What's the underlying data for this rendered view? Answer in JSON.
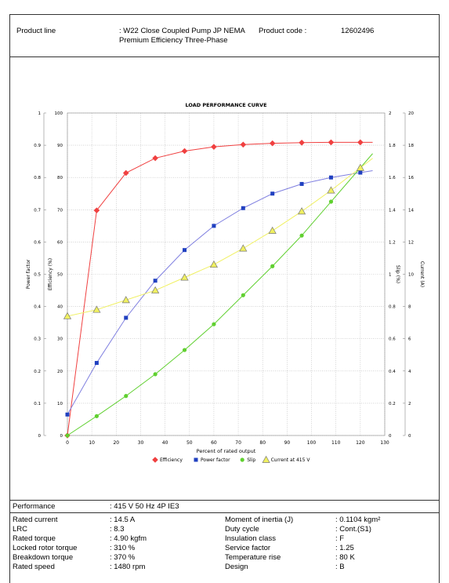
{
  "header": {
    "product_line_label": "Product line",
    "product_line_value": ": W22 Close Coupled Pump JP NEMA Premium Efficiency Three-Phase",
    "product_code_label": "Product code :",
    "product_code_value": "12602496"
  },
  "chart_data": {
    "type": "line",
    "title": "LOAD PERFORMANCE CURVE",
    "xlabel": "Percent of rated output",
    "xlim": [
      0,
      130
    ],
    "x_ticks": [
      0,
      10,
      20,
      30,
      40,
      50,
      60,
      70,
      80,
      90,
      100,
      110,
      120,
      130
    ],
    "axes": {
      "power_factor": {
        "label": "Power factor",
        "ticks": [
          "0",
          "0.1",
          "0.2",
          "0.3",
          "0.4",
          "0.5",
          "0.6",
          "0.7",
          "0.8",
          "0.9",
          "1"
        ],
        "range": [
          0,
          1
        ]
      },
      "efficiency": {
        "label": "Efficiency (%)",
        "ticks": [
          "0",
          "10",
          "20",
          "30",
          "40",
          "50",
          "60",
          "70",
          "80",
          "90",
          "100"
        ],
        "range": [
          0,
          100
        ]
      },
      "slip": {
        "label": "Slip (%)",
        "ticks": [
          "0",
          "0.2",
          "0.4",
          "0.6",
          "0.8",
          "1",
          "1.2",
          "1.4",
          "1.6",
          "1.8",
          "2"
        ],
        "range": [
          0,
          2
        ]
      },
      "current": {
        "label": "Current (A)",
        "ticks": [
          "0",
          "2",
          "4",
          "6",
          "8",
          "10",
          "12",
          "14",
          "16",
          "18",
          "20"
        ],
        "range": [
          0,
          20
        ]
      }
    },
    "grid": true,
    "legend_position": "bottom",
    "series": [
      {
        "name": "Efficiency",
        "axis": "efficiency",
        "color": "#f04040",
        "marker": "diamond",
        "x": [
          0,
          12,
          24,
          36,
          48,
          60,
          72,
          84,
          96,
          108,
          120
        ],
        "y": [
          0,
          69.8,
          81.4,
          86,
          88.2,
          89.5,
          90.2,
          90.6,
          90.8,
          90.9,
          90.9
        ]
      },
      {
        "name": "Power factor",
        "axis": "power_factor",
        "color": "#2040c0",
        "line_color": "#8080e0",
        "marker": "square",
        "x": [
          0,
          12,
          24,
          36,
          48,
          60,
          72,
          84,
          96,
          108,
          120
        ],
        "y": [
          0.065,
          0.225,
          0.365,
          0.48,
          0.575,
          0.65,
          0.705,
          0.75,
          0.78,
          0.8,
          0.815
        ]
      },
      {
        "name": "Slip",
        "axis": "slip",
        "color": "#60d030",
        "marker": "circle",
        "x": [
          0,
          12,
          24,
          36,
          48,
          60,
          72,
          84,
          96,
          108,
          120
        ],
        "y": [
          0,
          0.12,
          0.245,
          0.38,
          0.53,
          0.69,
          0.87,
          1.05,
          1.24,
          1.45,
          1.66
        ]
      },
      {
        "name": "Current at 415 V",
        "axis": "current",
        "color": "#f0f060",
        "marker": "triangle",
        "x": [
          0,
          12,
          24,
          36,
          48,
          60,
          72,
          84,
          96,
          108,
          120
        ],
        "y": [
          7.4,
          7.8,
          8.4,
          9.0,
          9.8,
          10.6,
          11.6,
          12.7,
          13.9,
          15.2,
          16.6
        ]
      }
    ]
  },
  "performance": {
    "label": "Performance",
    "value": ": 415 V 50 Hz 4P IE3"
  },
  "specs_left": [
    {
      "label": "Rated current",
      "value": ": 14.5 A"
    },
    {
      "label": "LRC",
      "value": ": 8.3"
    },
    {
      "label": "Rated torque",
      "value": ": 4.90 kgfm"
    },
    {
      "label": "Locked rotor torque",
      "value": ": 310 %"
    },
    {
      "label": "Breakdown torque",
      "value": ": 370 %"
    },
    {
      "label": "Rated speed",
      "value": ": 1480 rpm"
    }
  ],
  "specs_right": [
    {
      "label": "Moment of inertia (J)",
      "value": ": 0.1104 kgm²"
    },
    {
      "label": "Duty cycle",
      "value": ": Cont.(S1)"
    },
    {
      "label": "Insulation class",
      "value": ": F"
    },
    {
      "label": "Service factor",
      "value": ": 1.25"
    },
    {
      "label": "Temperature rise",
      "value": ": 80 K"
    },
    {
      "label": "Design",
      "value": ": B"
    }
  ]
}
